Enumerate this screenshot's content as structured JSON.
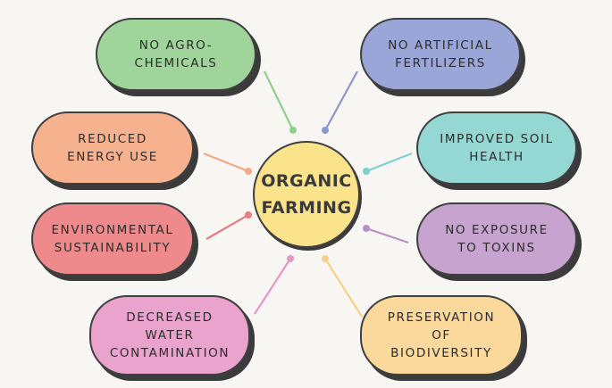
{
  "center": {
    "label": "ORGANIC\nFARMING",
    "color": "#fbe38c"
  },
  "nodes": [
    {
      "id": "no-agro-chemicals",
      "label": "NO AGRO-\nCHEMICALS",
      "color": "#9fd49b",
      "connector_color": "#8fcf8a"
    },
    {
      "id": "no-artificial-fertilizers",
      "label": "NO ARTIFICIAL\nFERTILIZERS",
      "color": "#9aa5d8",
      "connector_color": "#8b96d0"
    },
    {
      "id": "reduced-energy-use",
      "label": "REDUCED\nENERGY USE",
      "color": "#f6b28f",
      "connector_color": "#f2a987"
    },
    {
      "id": "improved-soil-health",
      "label": "IMPROVED SOIL\nHEALTH",
      "color": "#95d7d3",
      "connector_color": "#7fcfca"
    },
    {
      "id": "environmental-sustainability",
      "label": "ENVIRONMENTAL\nSUSTAINABILITY",
      "color": "#ee8a8b",
      "connector_color": "#ea7b7e"
    },
    {
      "id": "no-exposure-to-toxins",
      "label": "NO EXPOSURE\nTO TOXINS",
      "color": "#c7a4d0",
      "connector_color": "#b98fc6"
    },
    {
      "id": "decreased-water-contamination",
      "label": "DECREASED\nWATER\nCONTAMINATION",
      "color": "#eaa3cd",
      "connector_color": "#e797c7"
    },
    {
      "id": "preservation-of-biodiversity",
      "label": "PRESERVATION\nOF\nBIODIVERSITY",
      "color": "#fbd99c",
      "connector_color": "#f7d088"
    }
  ],
  "colors": {
    "background": "#f7f6f3",
    "outline": "#3f3f3f",
    "shadow": "#3b3b3b"
  }
}
